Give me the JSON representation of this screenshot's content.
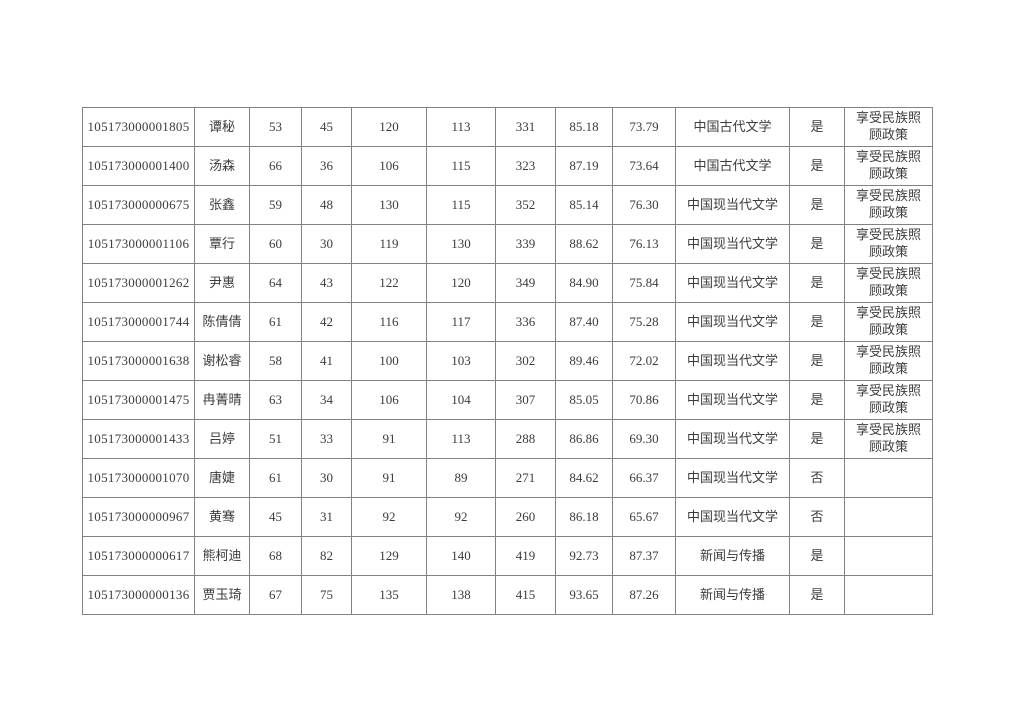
{
  "page": {
    "background": "#ffffff"
  },
  "table": {
    "border_color": "#828282",
    "text_color": "#3c3c3c",
    "column_names": [
      "candidate-id",
      "name",
      "score-1",
      "score-2",
      "score-3",
      "score-4",
      "initial-total",
      "interview-score",
      "weighted-total",
      "major",
      "admitted-flag",
      "remark"
    ],
    "rows": [
      [
        "105173000001805",
        "谭秘",
        "53",
        "45",
        "120",
        "113",
        "331",
        "85.18",
        "73.79",
        "中国古代文学",
        "是",
        "享受民族照顾政策"
      ],
      [
        "105173000001400",
        "汤森",
        "66",
        "36",
        "106",
        "115",
        "323",
        "87.19",
        "73.64",
        "中国古代文学",
        "是",
        "享受民族照顾政策"
      ],
      [
        "105173000000675",
        "张鑫",
        "59",
        "48",
        "130",
        "115",
        "352",
        "85.14",
        "76.30",
        "中国现当代文学",
        "是",
        "享受民族照顾政策"
      ],
      [
        "105173000001106",
        "覃行",
        "60",
        "30",
        "119",
        "130",
        "339",
        "88.62",
        "76.13",
        "中国现当代文学",
        "是",
        "享受民族照顾政策"
      ],
      [
        "105173000001262",
        "尹惠",
        "64",
        "43",
        "122",
        "120",
        "349",
        "84.90",
        "75.84",
        "中国现当代文学",
        "是",
        "享受民族照顾政策"
      ],
      [
        "105173000001744",
        "陈倩倩",
        "61",
        "42",
        "116",
        "117",
        "336",
        "87.40",
        "75.28",
        "中国现当代文学",
        "是",
        "享受民族照顾政策"
      ],
      [
        "105173000001638",
        "谢松睿",
        "58",
        "41",
        "100",
        "103",
        "302",
        "89.46",
        "72.02",
        "中国现当代文学",
        "是",
        "享受民族照顾政策"
      ],
      [
        "105173000001475",
        "冉菁晴",
        "63",
        "34",
        "106",
        "104",
        "307",
        "85.05",
        "70.86",
        "中国现当代文学",
        "是",
        "享受民族照顾政策"
      ],
      [
        "105173000001433",
        "吕婷",
        "51",
        "33",
        "91",
        "113",
        "288",
        "86.86",
        "69.30",
        "中国现当代文学",
        "是",
        "享受民族照顾政策"
      ],
      [
        "105173000001070",
        "唐婕",
        "61",
        "30",
        "91",
        "89",
        "271",
        "84.62",
        "66.37",
        "中国现当代文学",
        "否",
        ""
      ],
      [
        "105173000000967",
        "黄骞",
        "45",
        "31",
        "92",
        "92",
        "260",
        "86.18",
        "65.67",
        "中国现当代文学",
        "否",
        ""
      ],
      [
        "105173000000617",
        "熊柯迪",
        "68",
        "82",
        "129",
        "140",
        "419",
        "92.73",
        "87.37",
        "新闻与传播",
        "是",
        ""
      ],
      [
        "105173000000136",
        "贾玉琦",
        "67",
        "75",
        "135",
        "138",
        "415",
        "93.65",
        "87.26",
        "新闻与传播",
        "是",
        ""
      ]
    ]
  }
}
